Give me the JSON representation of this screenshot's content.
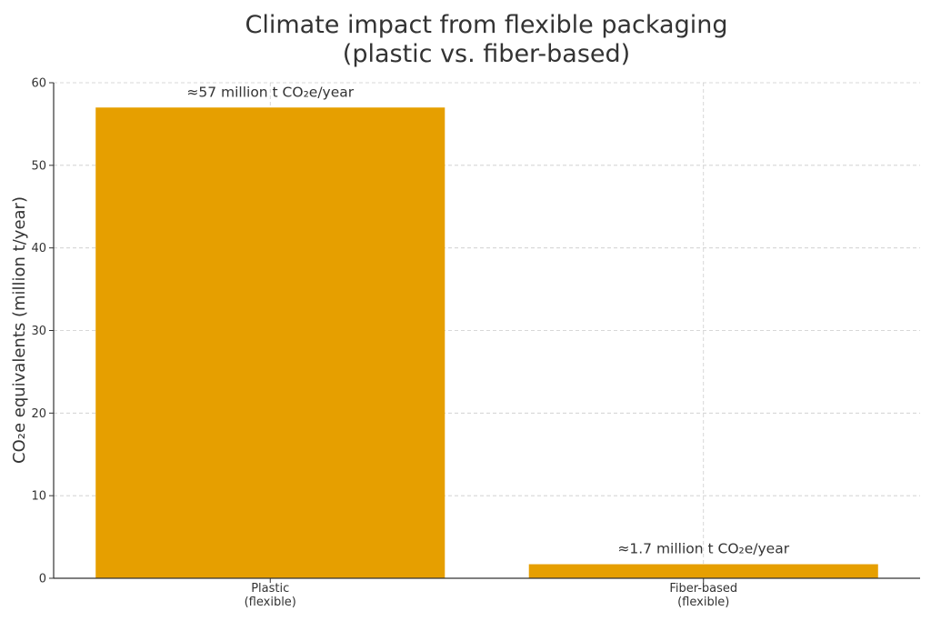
{
  "chart_data": {
    "type": "bar",
    "title_lines": [
      "Climate impact from flexible packaging",
      "(plastic vs. fiber-based)"
    ],
    "xlabel": "",
    "ylabel": "CO₂e equivalents (million t/year)",
    "categories": [
      [
        "Plastic",
        "(flexible)"
      ],
      [
        "Fiber-based",
        "(flexible)"
      ]
    ],
    "values": [
      57,
      1.7
    ],
    "data_labels": [
      "≈57 million t CO₂e/year",
      "≈1.7 million t CO₂e/year"
    ],
    "ylim": [
      0,
      60
    ],
    "yticks": [
      0,
      10,
      20,
      30,
      40,
      50,
      60
    ],
    "grid": true,
    "bar_color": "#E69F00"
  }
}
